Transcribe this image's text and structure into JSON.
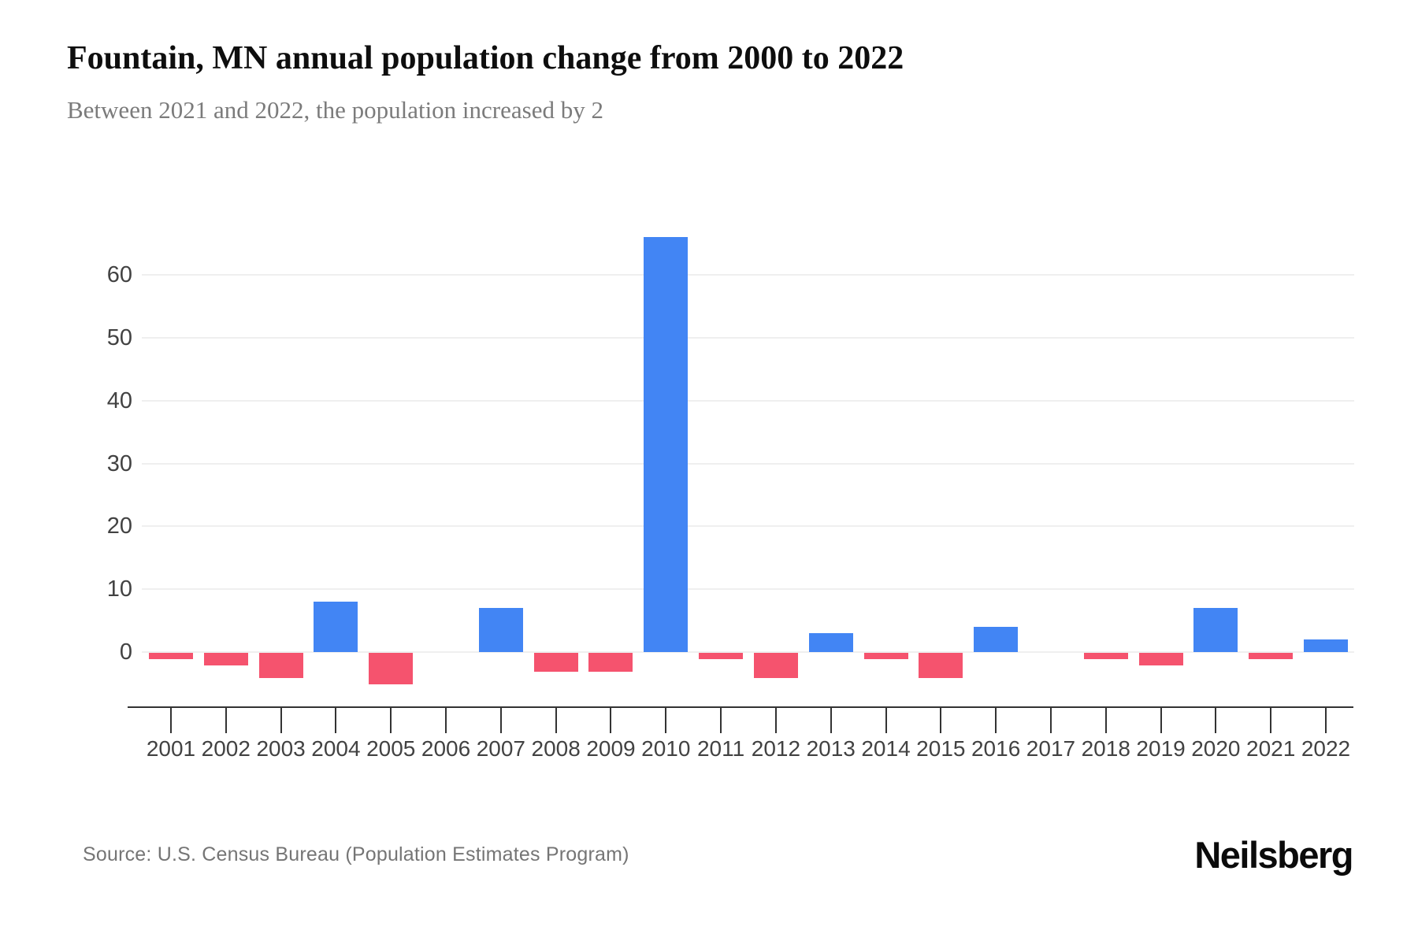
{
  "chart_data": {
    "type": "bar",
    "title": "Fountain, MN annual population change from 2000 to 2022",
    "subtitle": "Between 2021 and 2022, the population increased by 2",
    "xlabel": "",
    "ylabel": "",
    "categories": [
      "2001",
      "2002",
      "2003",
      "2004",
      "2005",
      "2006",
      "2007",
      "2008",
      "2009",
      "2010",
      "2011",
      "2012",
      "2013",
      "2014",
      "2015",
      "2016",
      "2017",
      "2018",
      "2019",
      "2020",
      "2021",
      "2022"
    ],
    "values": [
      -1,
      -2,
      -4,
      8,
      -5,
      0,
      7,
      -3,
      -3,
      66,
      -1,
      -4,
      3,
      -1,
      -4,
      4,
      0,
      -1,
      -2,
      7,
      -1,
      2
    ],
    "y_ticks": [
      0,
      10,
      20,
      30,
      40,
      50,
      60
    ],
    "ylim": [
      -9,
      71
    ],
    "grid": true,
    "legend": false,
    "positive_color": "#4285f4",
    "negative_color": "#f5536e",
    "gridline_color": "#efefef",
    "axis_color": "#333333"
  },
  "footer": {
    "source": "Source: U.S. Census Bureau (Population Estimates Program)",
    "brand": "Neilsberg"
  }
}
